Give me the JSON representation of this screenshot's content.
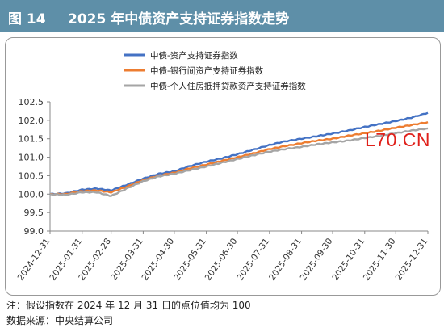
{
  "header": {
    "fig_label": "图 14",
    "title": "2025 年中债资产支持证券指数走势"
  },
  "watermark": "L70.CN",
  "footer": {
    "note": "注：假设指数在 2024 年 12 月 31 日的点位值均为 100",
    "source": "数据来源：中央结算公司"
  },
  "colors": {
    "title_bg": "#5e8fa8",
    "series": [
      "#4472c4",
      "#ed7d31",
      "#a5a5a5"
    ],
    "watermark": "#e0201a"
  },
  "chart_data": {
    "type": "line",
    "title": "2025 年中债资产支持证券指数走势",
    "xlabel": "",
    "ylabel": "",
    "ylim": [
      99.0,
      102.5
    ],
    "yticks": [
      "102.5",
      "102.0",
      "101.5",
      "101.0",
      "100.5",
      "100.0",
      "99.5",
      "99.0"
    ],
    "x_ticks": [
      "2024-12-31",
      "2025-01-31",
      "2025-02-28",
      "2025-03-31",
      "2025-04-30",
      "2025-05-31",
      "2025-06-30",
      "2025-07-31",
      "2025-08-31",
      "2025-09-30",
      "2025-10-31",
      "2025-11-30",
      "2025-12-31"
    ],
    "grid": false,
    "legend_position": "top-center",
    "x": [
      "2024-12-31",
      "2025-01-15",
      "2025-01-31",
      "2025-02-14",
      "2025-02-28",
      "2025-03-15",
      "2025-03-31",
      "2025-04-15",
      "2025-04-30",
      "2025-05-15",
      "2025-05-31",
      "2025-06-15",
      "2025-06-30",
      "2025-07-15",
      "2025-07-31",
      "2025-08-15",
      "2025-08-31",
      "2025-09-15",
      "2025-09-30",
      "2025-10-15",
      "2025-10-31",
      "2025-11-15",
      "2025-11-30",
      "2025-12-15",
      "2025-12-31"
    ],
    "series": [
      {
        "name": "中债-资产支持证券指数",
        "values": [
          100.0,
          100.02,
          100.12,
          100.15,
          100.1,
          100.25,
          100.42,
          100.55,
          100.62,
          100.76,
          100.88,
          100.97,
          101.08,
          101.2,
          101.33,
          101.43,
          101.5,
          101.57,
          101.64,
          101.72,
          101.82,
          101.9,
          101.98,
          102.07,
          102.2
        ]
      },
      {
        "name": "中债-银行间资产支持证券指数",
        "values": [
          100.0,
          100.0,
          100.08,
          100.1,
          100.05,
          100.2,
          100.38,
          100.5,
          100.58,
          100.7,
          100.8,
          100.9,
          101.0,
          101.1,
          101.22,
          101.3,
          101.38,
          101.45,
          101.5,
          101.58,
          101.65,
          101.72,
          101.8,
          101.87,
          101.95
        ]
      },
      {
        "name": "中债-个人住房抵押贷款资产支持证券指数",
        "values": [
          100.0,
          99.98,
          100.05,
          100.05,
          99.95,
          100.15,
          100.35,
          100.48,
          100.55,
          100.65,
          100.75,
          100.85,
          100.95,
          101.05,
          101.15,
          101.22,
          101.28,
          101.35,
          101.4,
          101.45,
          101.52,
          101.58,
          101.65,
          101.72,
          101.78
        ]
      }
    ]
  }
}
